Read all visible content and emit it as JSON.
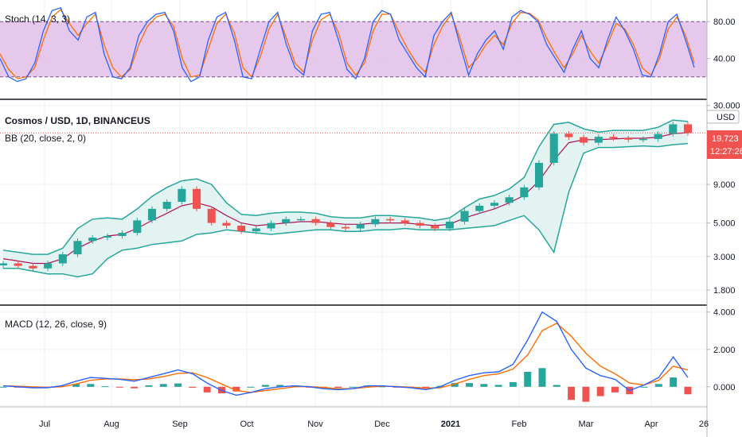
{
  "chart_data": [
    {
      "type": "line",
      "title": "Stoch (14, 3, 3)",
      "panel": "stoch",
      "ylim": [
        0,
        100
      ],
      "yticks": [
        "80.00",
        "40.00"
      ],
      "ytick_values": [
        80,
        40
      ],
      "bands": [
        20,
        80
      ],
      "colors": {
        "k": "#2962ff",
        "d": "#ff6d00",
        "band_fill": "#e1bee7"
      },
      "series": [
        {
          "name": "%K",
          "values": [
            40,
            20,
            15,
            18,
            35,
            70,
            92,
            95,
            70,
            60,
            85,
            90,
            45,
            20,
            18,
            30,
            65,
            80,
            88,
            90,
            70,
            30,
            15,
            20,
            60,
            85,
            90,
            60,
            20,
            18,
            50,
            80,
            90,
            55,
            30,
            22,
            70,
            88,
            90,
            60,
            28,
            18,
            40,
            80,
            92,
            88,
            60,
            45,
            30,
            20,
            65,
            80,
            90,
            55,
            22,
            45,
            60,
            70,
            50,
            85,
            92,
            88,
            80,
            55,
            40,
            25,
            50,
            70,
            40,
            30,
            60,
            85,
            70,
            50,
            22,
            20,
            45,
            80,
            88,
            60,
            30
          ]
        },
        {
          "name": "%D",
          "values": [
            45,
            28,
            18,
            20,
            30,
            60,
            85,
            93,
            78,
            65,
            78,
            88,
            55,
            30,
            20,
            28,
            55,
            75,
            85,
            88,
            75,
            40,
            20,
            22,
            50,
            78,
            88,
            68,
            30,
            20,
            42,
            72,
            88,
            62,
            35,
            25,
            60,
            82,
            88,
            68,
            35,
            22,
            35,
            70,
            88,
            88,
            68,
            50,
            35,
            25,
            55,
            75,
            88,
            62,
            30,
            40,
            55,
            65,
            55,
            78,
            90,
            89,
            82,
            62,
            45,
            30,
            45,
            65,
            48,
            35,
            55,
            78,
            72,
            55,
            30,
            22,
            40,
            72,
            85,
            65,
            35
          ]
        }
      ]
    },
    {
      "type": "candlestick",
      "title": "Cosmos / USD, 1D, BINANCEUS",
      "indicator": "BB (20, close, 2, 0)",
      "panel": "price",
      "scale": "log",
      "ylim": [
        1.5,
        31
      ],
      "yticks": [
        "30.000",
        "9.000",
        "5.000",
        "3.000",
        "1.800"
      ],
      "ytick_values": [
        30,
        9,
        5,
        3,
        1.8
      ],
      "currency": "USD",
      "last_price": "19.723",
      "countdown": "12:27:26",
      "colors": {
        "up": "#26a69a",
        "down": "#ef5350",
        "bb_basis": "#ad1457",
        "bb_band": "#26a69a",
        "bb_fill": "#e0f2f1",
        "price_line": "#ef5350"
      },
      "x": [
        "2020-06-01",
        "2020-06-08",
        "2020-06-15",
        "2020-06-22",
        "2020-06-29",
        "2020-07-06",
        "2020-07-13",
        "2020-07-20",
        "2020-07-27",
        "2020-08-03",
        "2020-08-10",
        "2020-08-17",
        "2020-08-24",
        "2020-08-31",
        "2020-09-07",
        "2020-09-14",
        "2020-09-21",
        "2020-09-28",
        "2020-10-05",
        "2020-10-12",
        "2020-10-19",
        "2020-10-26",
        "2020-11-02",
        "2020-11-09",
        "2020-11-16",
        "2020-11-23",
        "2020-11-30",
        "2020-12-07",
        "2020-12-14",
        "2020-12-21",
        "2020-12-28",
        "2021-01-04",
        "2021-01-11",
        "2021-01-18",
        "2021-01-25",
        "2021-02-01",
        "2021-02-08",
        "2021-02-15",
        "2021-02-22",
        "2021-03-01",
        "2021-03-08",
        "2021-03-15",
        "2021-03-22",
        "2021-03-29",
        "2021-04-05",
        "2021-04-12",
        "2021-04-19"
      ],
      "close": [
        2.7,
        2.6,
        2.5,
        2.7,
        3.1,
        3.8,
        4.0,
        4.1,
        4.3,
        5.2,
        6.2,
        6.9,
        8.4,
        6.2,
        5.0,
        4.8,
        4.4,
        4.6,
        5.0,
        5.3,
        5.3,
        5.0,
        4.7,
        4.6,
        4.9,
        5.3,
        5.2,
        5.0,
        4.8,
        4.6,
        5.1,
        6.0,
        6.5,
        6.8,
        7.4,
        8.6,
        12.5,
        19.5,
        18.5,
        17.0,
        18.6,
        18.2,
        17.8,
        18.0,
        19.4,
        22.5,
        19.7
      ],
      "bb_upper": [
        3.3,
        3.2,
        3.1,
        3.1,
        3.4,
        4.6,
        5.3,
        5.4,
        5.3,
        6.2,
        7.5,
        8.6,
        9.5,
        9.8,
        9.0,
        6.8,
        5.7,
        5.6,
        5.8,
        5.9,
        5.9,
        5.8,
        5.5,
        5.4,
        5.4,
        5.6,
        5.6,
        5.5,
        5.4,
        5.2,
        5.4,
        6.3,
        7.2,
        7.6,
        8.4,
        10.0,
        16.0,
        22.5,
        23.2,
        21.0,
        20.0,
        20.5,
        20.5,
        20.5,
        21.5,
        24.0,
        23.5
      ],
      "bb_basis": [
        2.9,
        2.8,
        2.7,
        2.7,
        2.9,
        3.4,
        3.8,
        4.1,
        4.2,
        4.6,
        5.2,
        5.8,
        6.5,
        6.8,
        6.4,
        5.6,
        5.0,
        4.8,
        4.9,
        5.0,
        5.1,
        5.1,
        5.0,
        4.9,
        4.9,
        5.0,
        5.0,
        5.0,
        4.9,
        4.8,
        4.9,
        5.4,
        5.8,
        6.2,
        6.8,
        7.6,
        9.5,
        13.0,
        17.0,
        17.8,
        17.8,
        18.0,
        18.2,
        18.2,
        18.5,
        19.5,
        19.8
      ],
      "bb_lower": [
        2.5,
        2.5,
        2.4,
        2.3,
        2.3,
        2.2,
        2.3,
        2.9,
        3.3,
        3.4,
        3.6,
        3.7,
        3.8,
        4.2,
        4.3,
        4.5,
        4.4,
        4.3,
        4.2,
        4.3,
        4.4,
        4.5,
        4.5,
        4.4,
        4.4,
        4.5,
        4.5,
        4.6,
        4.5,
        4.5,
        4.5,
        4.6,
        4.7,
        4.8,
        5.2,
        5.6,
        4.5,
        3.2,
        8.0,
        14.5,
        15.8,
        15.8,
        16.0,
        16.2,
        16.0,
        16.5,
        16.8
      ]
    },
    {
      "type": "line",
      "title": "MACD (12, 26, close, 9)",
      "panel": "macd",
      "ylim": [
        -0.9,
        4.2
      ],
      "yticks": [
        "4.000",
        "2.000",
        "0.000"
      ],
      "ytick_values": [
        4,
        2,
        0
      ],
      "colors": {
        "macd": "#2962ff",
        "signal": "#ff6d00",
        "hist_up": "#26a69a",
        "hist_down": "#ef5350"
      },
      "series": [
        {
          "name": "MACD",
          "values": [
            0.05,
            0.0,
            -0.05,
            -0.05,
            0.05,
            0.3,
            0.5,
            0.45,
            0.4,
            0.3,
            0.5,
            0.7,
            0.9,
            0.7,
            0.2,
            -0.2,
            -0.45,
            -0.3,
            -0.1,
            0.0,
            0.05,
            0.0,
            -0.1,
            -0.15,
            -0.1,
            0.05,
            0.05,
            0.0,
            -0.05,
            -0.15,
            0.0,
            0.35,
            0.6,
            0.75,
            0.8,
            1.2,
            2.5,
            4.0,
            3.5,
            2.0,
            1.0,
            0.6,
            0.4,
            -0.2,
            0.1,
            0.5,
            1.6,
            0.5
          ]
        },
        {
          "name": "Signal",
          "values": [
            0.05,
            0.03,
            0.0,
            -0.03,
            0.0,
            0.15,
            0.35,
            0.42,
            0.42,
            0.38,
            0.42,
            0.55,
            0.72,
            0.75,
            0.5,
            0.15,
            -0.2,
            -0.3,
            -0.2,
            -0.1,
            0.0,
            0.02,
            -0.04,
            -0.1,
            -0.1,
            -0.02,
            0.03,
            0.02,
            -0.02,
            -0.08,
            -0.05,
            0.15,
            0.4,
            0.6,
            0.7,
            0.95,
            1.7,
            3.0,
            3.4,
            2.7,
            1.8,
            1.1,
            0.7,
            0.2,
            0.1,
            0.35,
            1.1,
            0.9
          ]
        },
        {
          "name": "Histogram",
          "values": [
            0.0,
            -0.03,
            -0.05,
            -0.02,
            0.05,
            0.15,
            0.15,
            0.03,
            -0.02,
            -0.08,
            0.08,
            0.15,
            0.18,
            -0.05,
            -0.3,
            -0.35,
            -0.25,
            0.0,
            0.1,
            0.1,
            0.05,
            -0.02,
            -0.06,
            -0.05,
            0.0,
            0.07,
            0.02,
            -0.02,
            -0.03,
            -0.07,
            0.05,
            0.2,
            0.2,
            0.15,
            0.1,
            0.25,
            0.8,
            1.0,
            0.1,
            -0.7,
            -0.8,
            -0.5,
            -0.3,
            -0.4,
            0.0,
            0.15,
            0.5,
            -0.4
          ]
        }
      ]
    }
  ],
  "x_axis": {
    "labels": [
      "Jul",
      "Aug",
      "Sep",
      "Oct",
      "Nov",
      "Dec",
      "2021",
      "Feb",
      "Mar",
      "Apr",
      "26"
    ]
  }
}
